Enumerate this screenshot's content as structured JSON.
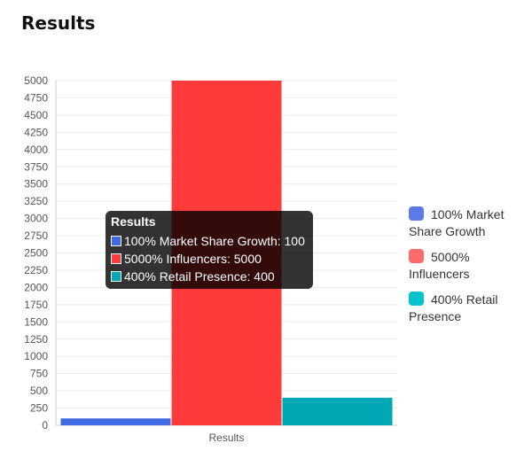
{
  "page": {
    "title": "Results"
  },
  "chart_data": {
    "type": "bar",
    "categories": [
      "Results"
    ],
    "series": [
      {
        "name": "100% Market Share Growth",
        "values": [
          100
        ],
        "color": "#4169e1"
      },
      {
        "name": "5000% Influencers",
        "values": [
          5000
        ],
        "color": "#ff3a3a"
      },
      {
        "name": "400% Retail Presence",
        "values": [
          400
        ],
        "color": "#00a8b5"
      }
    ],
    "ylim": [
      0,
      5000
    ],
    "ytick_step": 250,
    "grid": true,
    "legend": {
      "placement": "right",
      "items": [
        {
          "label": "100% Market Share Growth",
          "color": "#5b7be8"
        },
        {
          "label": "5000% Influencers",
          "color": "#ff6b6b"
        },
        {
          "label": "400% Retail Presence",
          "color": "#00c4cc"
        }
      ]
    },
    "tooltip": {
      "title": "Results",
      "rows": [
        {
          "label": "100% Market Share Growth: 100",
          "color": "#4169e1"
        },
        {
          "label": "5000% Influencers: 5000",
          "color": "#ff3a3a"
        },
        {
          "label": "400% Retail Presence: 400",
          "color": "#00a8b5"
        }
      ]
    }
  }
}
